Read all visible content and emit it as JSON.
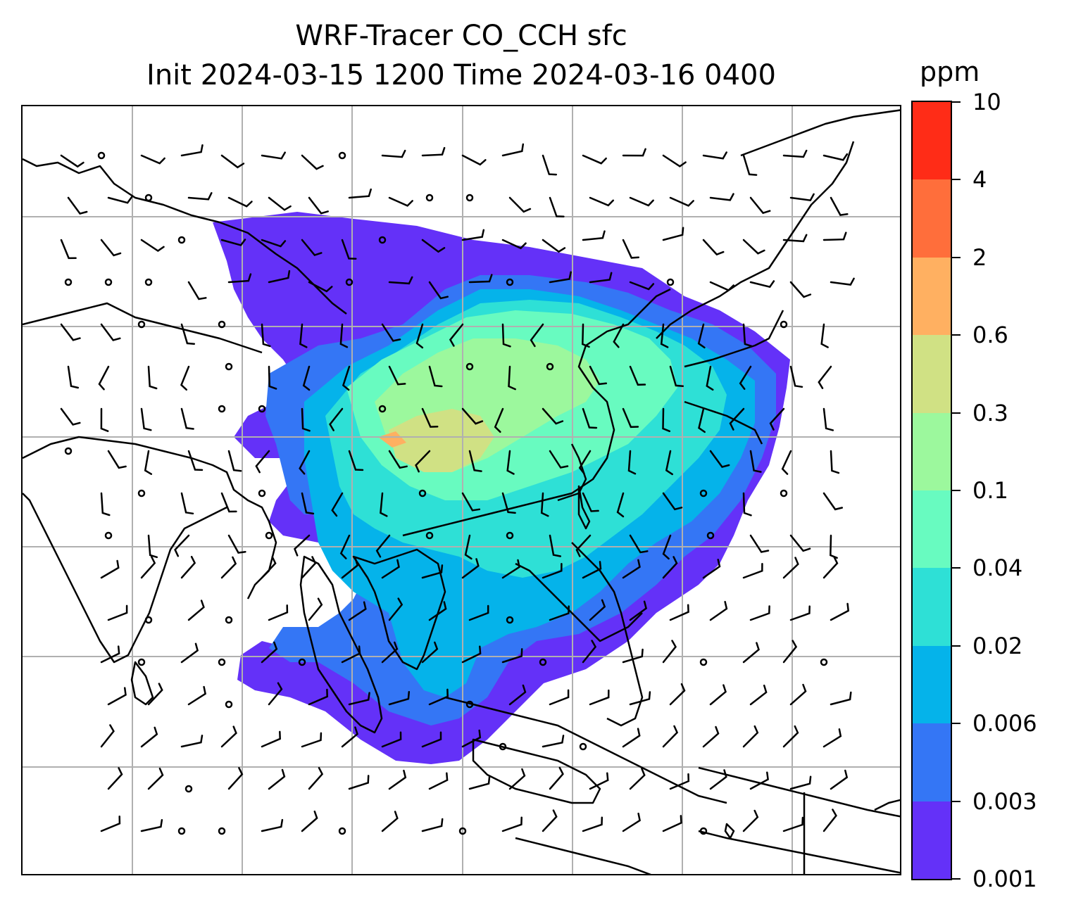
{
  "title": {
    "line1": "WRF-Tracer CO_CCH sfc",
    "line2": "Init 2024-03-15 1200 Time 2024-03-16 0400"
  },
  "colorbar": {
    "unit": "ppm",
    "levels": [
      "0.001",
      "0.003",
      "0.006",
      "0.02",
      "0.04",
      "0.1",
      "0.3",
      "0.6",
      "2",
      "4",
      "10"
    ],
    "colors": [
      "#6431f8",
      "#3476f5",
      "#05b3ea",
      "#2ee0d6",
      "#68fbc0",
      "#9cf89d",
      "#d0e184",
      "#ffb061",
      "#ff6e3b",
      "#ff2c17"
    ]
  },
  "map": {
    "field": "CO_CCH surface tracer concentration",
    "overlays": [
      "coastlines",
      "country-borders",
      "lat-lon-gridlines",
      "wind-barbs"
    ],
    "colors": {
      "coastline": "#000000",
      "gridline": "#b0b0b0"
    }
  }
}
